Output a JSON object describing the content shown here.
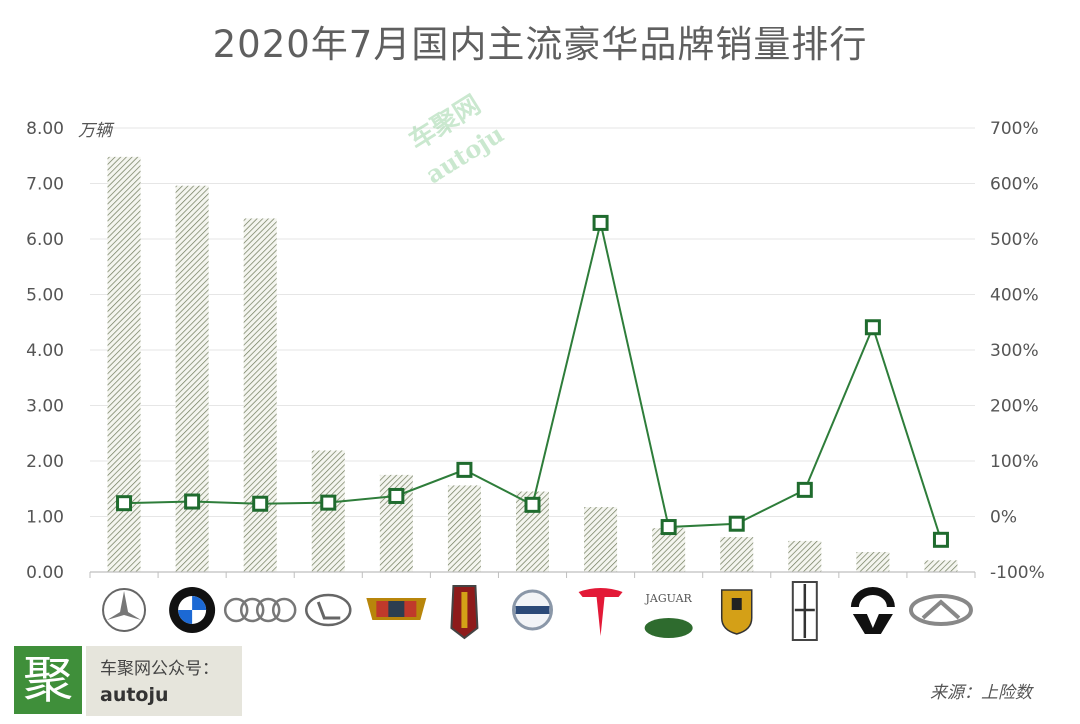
{
  "title": "2020年7月国内主流豪华品牌销量排行",
  "unit_label": "万辆",
  "watermark": {
    "line1": "车聚网",
    "line2": "autoju"
  },
  "branding": {
    "logo_char": "聚",
    "wechat_label": "车聚网公众号：",
    "wechat_id": "autoju"
  },
  "source": "来源：上险数",
  "colors": {
    "bar": "#9aa38a",
    "line": "#2e7d3a",
    "marker": "#1f6b2e",
    "grid": "#e6e6e6",
    "axis_text": "#555555"
  },
  "chart_data": {
    "type": "bar",
    "x_tick_labels_as": "brand logo icons",
    "categories": [
      "mercedes-benz-logo-icon",
      "bmw-logo-icon",
      "audi-logo-icon",
      "lexus-logo-icon",
      "cadillac-logo-icon",
      "hongqi-logo-icon",
      "volvo-logo-icon",
      "tesla-logo-icon",
      "jaguar-land-rover-logo-icon",
      "porsche-logo-icon",
      "lincoln-logo-icon",
      "nio-logo-icon",
      "infiniti-logo-icon"
    ],
    "series": [
      {
        "type": "bar",
        "axis": "left",
        "values": [
          7.48,
          6.96,
          6.37,
          2.19,
          1.75,
          1.56,
          1.45,
          1.17,
          0.79,
          0.63,
          0.56,
          0.36,
          0.21
        ]
      },
      {
        "type": "line",
        "axis": "right",
        "values": [
          24,
          27,
          23,
          25,
          37,
          84,
          21,
          529,
          -19,
          -13,
          48,
          341,
          -42
        ]
      }
    ],
    "left_axis": {
      "ylim": [
        0,
        8
      ],
      "ticks": [
        "0.00",
        "1.00",
        "2.00",
        "3.00",
        "4.00",
        "5.00",
        "6.00",
        "7.00",
        "8.00"
      ]
    },
    "right_axis": {
      "ylim": [
        -100,
        700
      ],
      "ticks": [
        "-100%",
        "0%",
        "100%",
        "200%",
        "300%",
        "400%",
        "500%",
        "600%",
        "700%"
      ]
    },
    "grid": true,
    "legend": "none"
  }
}
